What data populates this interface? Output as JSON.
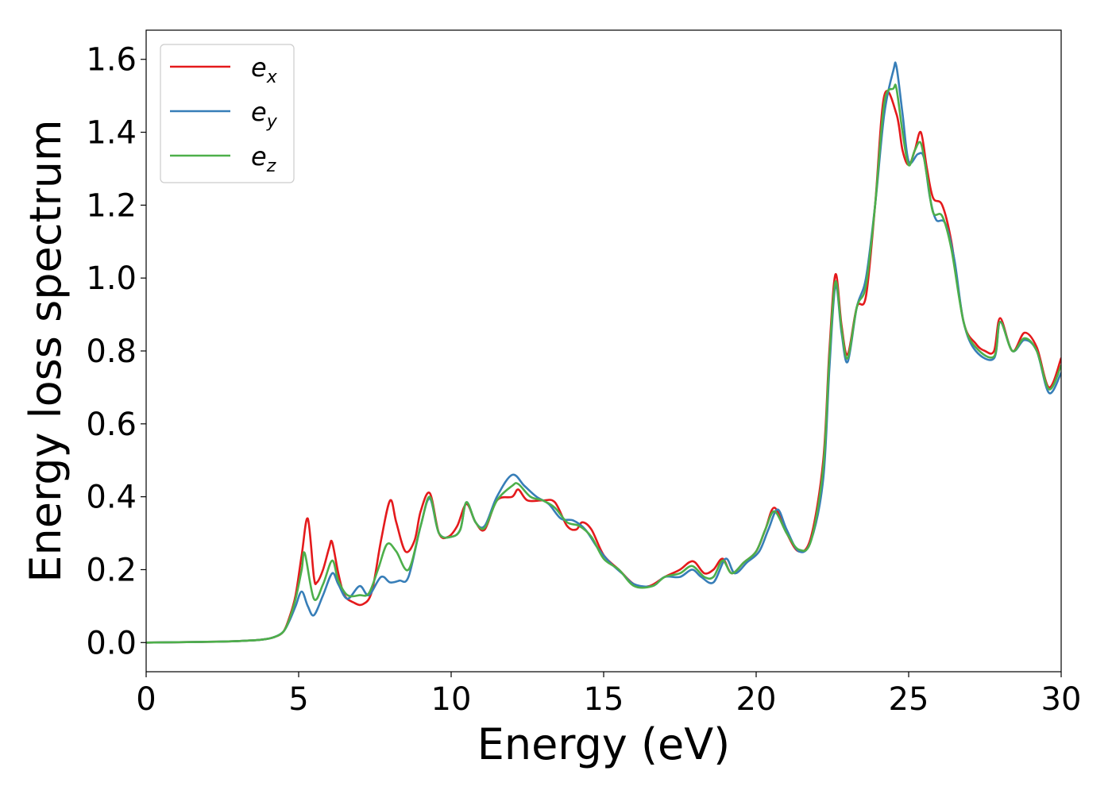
{
  "chart_data": {
    "type": "line",
    "title": "",
    "xlabel": "Energy (eV)",
    "ylabel": "Energy loss spectrum",
    "xlim": [
      0,
      30
    ],
    "ylim": [
      -0.08,
      1.68
    ],
    "xticks": [
      0,
      5,
      10,
      15,
      20,
      25,
      30
    ],
    "yticks": [
      0.0,
      0.2,
      0.4,
      0.6,
      0.8,
      1.0,
      1.2,
      1.4,
      1.6
    ],
    "grid": false,
    "legend_position": "top-left",
    "series": [
      {
        "name": "e",
        "subscript": "x",
        "color": "#e41a1c",
        "points": [
          [
            0,
            0.0
          ],
          [
            2,
            0.002
          ],
          [
            3,
            0.004
          ],
          [
            3.8,
            0.008
          ],
          [
            4.2,
            0.015
          ],
          [
            4.5,
            0.03
          ],
          [
            4.7,
            0.07
          ],
          [
            4.9,
            0.13
          ],
          [
            5.1,
            0.24
          ],
          [
            5.3,
            0.34
          ],
          [
            5.5,
            0.18
          ],
          [
            5.6,
            0.165
          ],
          [
            5.8,
            0.2
          ],
          [
            6.0,
            0.26
          ],
          [
            6.1,
            0.275
          ],
          [
            6.3,
            0.19
          ],
          [
            6.5,
            0.13
          ],
          [
            6.8,
            0.11
          ],
          [
            7.1,
            0.105
          ],
          [
            7.4,
            0.14
          ],
          [
            7.7,
            0.28
          ],
          [
            8.0,
            0.39
          ],
          [
            8.2,
            0.33
          ],
          [
            8.5,
            0.25
          ],
          [
            8.8,
            0.28
          ],
          [
            9.0,
            0.36
          ],
          [
            9.3,
            0.41
          ],
          [
            9.6,
            0.3
          ],
          [
            9.9,
            0.29
          ],
          [
            10.2,
            0.32
          ],
          [
            10.5,
            0.38
          ],
          [
            10.8,
            0.33
          ],
          [
            11.1,
            0.31
          ],
          [
            11.5,
            0.39
          ],
          [
            12.0,
            0.4
          ],
          [
            12.2,
            0.42
          ],
          [
            12.5,
            0.39
          ],
          [
            13.0,
            0.39
          ],
          [
            13.4,
            0.385
          ],
          [
            13.8,
            0.32
          ],
          [
            14.1,
            0.31
          ],
          [
            14.3,
            0.33
          ],
          [
            14.6,
            0.31
          ],
          [
            15.0,
            0.24
          ],
          [
            15.5,
            0.2
          ],
          [
            16.0,
            0.16
          ],
          [
            16.5,
            0.155
          ],
          [
            17.0,
            0.18
          ],
          [
            17.5,
            0.2
          ],
          [
            17.8,
            0.22
          ],
          [
            18.0,
            0.22
          ],
          [
            18.3,
            0.19
          ],
          [
            18.6,
            0.2
          ],
          [
            18.9,
            0.23
          ],
          [
            19.2,
            0.19
          ],
          [
            19.6,
            0.22
          ],
          [
            20.0,
            0.25
          ],
          [
            20.3,
            0.31
          ],
          [
            20.6,
            0.37
          ],
          [
            21.0,
            0.3
          ],
          [
            21.4,
            0.25
          ],
          [
            21.8,
            0.29
          ],
          [
            22.2,
            0.5
          ],
          [
            22.4,
            0.8
          ],
          [
            22.6,
            1.01
          ],
          [
            22.8,
            0.87
          ],
          [
            23.0,
            0.79
          ],
          [
            23.3,
            0.92
          ],
          [
            23.6,
            0.95
          ],
          [
            23.9,
            1.2
          ],
          [
            24.2,
            1.5
          ],
          [
            24.6,
            1.45
          ],
          [
            24.8,
            1.35
          ],
          [
            25.0,
            1.31
          ],
          [
            25.2,
            1.35
          ],
          [
            25.4,
            1.4
          ],
          [
            25.6,
            1.3
          ],
          [
            25.8,
            1.22
          ],
          [
            26.1,
            1.2
          ],
          [
            26.4,
            1.1
          ],
          [
            26.8,
            0.88
          ],
          [
            27.2,
            0.82
          ],
          [
            27.5,
            0.8
          ],
          [
            27.8,
            0.8
          ],
          [
            28.0,
            0.89
          ],
          [
            28.4,
            0.8
          ],
          [
            28.8,
            0.85
          ],
          [
            29.2,
            0.81
          ],
          [
            29.6,
            0.7
          ],
          [
            30.0,
            0.78
          ]
        ]
      },
      {
        "name": "e",
        "subscript": "y",
        "color": "#377eb8",
        "points": [
          [
            0,
            0.0
          ],
          [
            2,
            0.002
          ],
          [
            3,
            0.004
          ],
          [
            3.8,
            0.008
          ],
          [
            4.2,
            0.015
          ],
          [
            4.5,
            0.03
          ],
          [
            4.7,
            0.06
          ],
          [
            4.9,
            0.1
          ],
          [
            5.1,
            0.14
          ],
          [
            5.3,
            0.1
          ],
          [
            5.5,
            0.075
          ],
          [
            5.8,
            0.13
          ],
          [
            6.1,
            0.19
          ],
          [
            6.3,
            0.16
          ],
          [
            6.6,
            0.12
          ],
          [
            7.0,
            0.155
          ],
          [
            7.3,
            0.13
          ],
          [
            7.7,
            0.18
          ],
          [
            8.0,
            0.165
          ],
          [
            8.3,
            0.17
          ],
          [
            8.6,
            0.18
          ],
          [
            9.0,
            0.32
          ],
          [
            9.3,
            0.395
          ],
          [
            9.6,
            0.3
          ],
          [
            10.0,
            0.29
          ],
          [
            10.3,
            0.31
          ],
          [
            10.5,
            0.385
          ],
          [
            10.8,
            0.33
          ],
          [
            11.1,
            0.32
          ],
          [
            11.5,
            0.4
          ],
          [
            12.0,
            0.46
          ],
          [
            12.4,
            0.43
          ],
          [
            12.8,
            0.4
          ],
          [
            13.2,
            0.38
          ],
          [
            13.6,
            0.34
          ],
          [
            14.0,
            0.335
          ],
          [
            14.4,
            0.31
          ],
          [
            14.8,
            0.26
          ],
          [
            15.2,
            0.22
          ],
          [
            15.6,
            0.19
          ],
          [
            16.0,
            0.16
          ],
          [
            16.6,
            0.155
          ],
          [
            17.0,
            0.18
          ],
          [
            17.5,
            0.18
          ],
          [
            17.9,
            0.2
          ],
          [
            18.2,
            0.18
          ],
          [
            18.6,
            0.165
          ],
          [
            19.0,
            0.23
          ],
          [
            19.3,
            0.19
          ],
          [
            19.7,
            0.22
          ],
          [
            20.1,
            0.25
          ],
          [
            20.4,
            0.31
          ],
          [
            20.7,
            0.365
          ],
          [
            21.0,
            0.31
          ],
          [
            21.4,
            0.25
          ],
          [
            21.8,
            0.28
          ],
          [
            22.2,
            0.45
          ],
          [
            22.4,
            0.75
          ],
          [
            22.6,
            0.98
          ],
          [
            22.8,
            0.85
          ],
          [
            23.0,
            0.77
          ],
          [
            23.3,
            0.92
          ],
          [
            23.6,
            1.0
          ],
          [
            23.9,
            1.2
          ],
          [
            24.2,
            1.45
          ],
          [
            24.5,
            1.57
          ],
          [
            24.6,
            1.58
          ],
          [
            24.8,
            1.45
          ],
          [
            25.0,
            1.32
          ],
          [
            25.3,
            1.34
          ],
          [
            25.5,
            1.33
          ],
          [
            25.7,
            1.22
          ],
          [
            25.9,
            1.16
          ],
          [
            26.2,
            1.15
          ],
          [
            26.5,
            1.05
          ],
          [
            26.8,
            0.88
          ],
          [
            27.2,
            0.8
          ],
          [
            27.8,
            0.78
          ],
          [
            28.0,
            0.88
          ],
          [
            28.4,
            0.8
          ],
          [
            28.8,
            0.83
          ],
          [
            29.2,
            0.8
          ],
          [
            29.6,
            0.685
          ],
          [
            30.0,
            0.74
          ]
        ]
      },
      {
        "name": "e",
        "subscript": "z",
        "color": "#4daf4a",
        "points": [
          [
            0,
            0.0
          ],
          [
            2,
            0.002
          ],
          [
            3,
            0.004
          ],
          [
            3.8,
            0.008
          ],
          [
            4.2,
            0.015
          ],
          [
            4.5,
            0.03
          ],
          [
            4.7,
            0.065
          ],
          [
            4.9,
            0.12
          ],
          [
            5.1,
            0.2
          ],
          [
            5.2,
            0.245
          ],
          [
            5.5,
            0.12
          ],
          [
            5.8,
            0.16
          ],
          [
            6.1,
            0.225
          ],
          [
            6.3,
            0.17
          ],
          [
            6.6,
            0.13
          ],
          [
            7.0,
            0.13
          ],
          [
            7.3,
            0.135
          ],
          [
            7.6,
            0.2
          ],
          [
            7.9,
            0.27
          ],
          [
            8.2,
            0.25
          ],
          [
            8.6,
            0.2
          ],
          [
            9.0,
            0.32
          ],
          [
            9.3,
            0.4
          ],
          [
            9.6,
            0.3
          ],
          [
            10.0,
            0.29
          ],
          [
            10.3,
            0.31
          ],
          [
            10.5,
            0.385
          ],
          [
            10.8,
            0.33
          ],
          [
            11.1,
            0.315
          ],
          [
            11.5,
            0.39
          ],
          [
            12.0,
            0.43
          ],
          [
            12.2,
            0.435
          ],
          [
            12.6,
            0.4
          ],
          [
            13.0,
            0.39
          ],
          [
            13.4,
            0.37
          ],
          [
            13.8,
            0.33
          ],
          [
            14.2,
            0.32
          ],
          [
            14.6,
            0.29
          ],
          [
            15.0,
            0.23
          ],
          [
            15.5,
            0.2
          ],
          [
            16.0,
            0.155
          ],
          [
            16.6,
            0.155
          ],
          [
            17.0,
            0.18
          ],
          [
            17.5,
            0.19
          ],
          [
            17.9,
            0.21
          ],
          [
            18.3,
            0.18
          ],
          [
            18.6,
            0.18
          ],
          [
            18.9,
            0.225
          ],
          [
            19.2,
            0.19
          ],
          [
            19.6,
            0.22
          ],
          [
            20.0,
            0.25
          ],
          [
            20.3,
            0.31
          ],
          [
            20.6,
            0.36
          ],
          [
            21.0,
            0.3
          ],
          [
            21.4,
            0.255
          ],
          [
            21.8,
            0.28
          ],
          [
            22.2,
            0.48
          ],
          [
            22.4,
            0.78
          ],
          [
            22.6,
            0.99
          ],
          [
            22.8,
            0.86
          ],
          [
            23.0,
            0.78
          ],
          [
            23.3,
            0.92
          ],
          [
            23.6,
            0.98
          ],
          [
            23.9,
            1.2
          ],
          [
            24.2,
            1.48
          ],
          [
            24.5,
            1.52
          ],
          [
            24.6,
            1.52
          ],
          [
            24.8,
            1.4
          ],
          [
            25.0,
            1.31
          ],
          [
            25.2,
            1.35
          ],
          [
            25.4,
            1.37
          ],
          [
            25.6,
            1.28
          ],
          [
            25.8,
            1.18
          ],
          [
            26.1,
            1.17
          ],
          [
            26.4,
            1.08
          ],
          [
            26.8,
            0.88
          ],
          [
            27.2,
            0.81
          ],
          [
            27.8,
            0.785
          ],
          [
            28.0,
            0.88
          ],
          [
            28.4,
            0.8
          ],
          [
            28.8,
            0.835
          ],
          [
            29.2,
            0.8
          ],
          [
            29.6,
            0.695
          ],
          [
            30.0,
            0.76
          ]
        ]
      }
    ]
  }
}
